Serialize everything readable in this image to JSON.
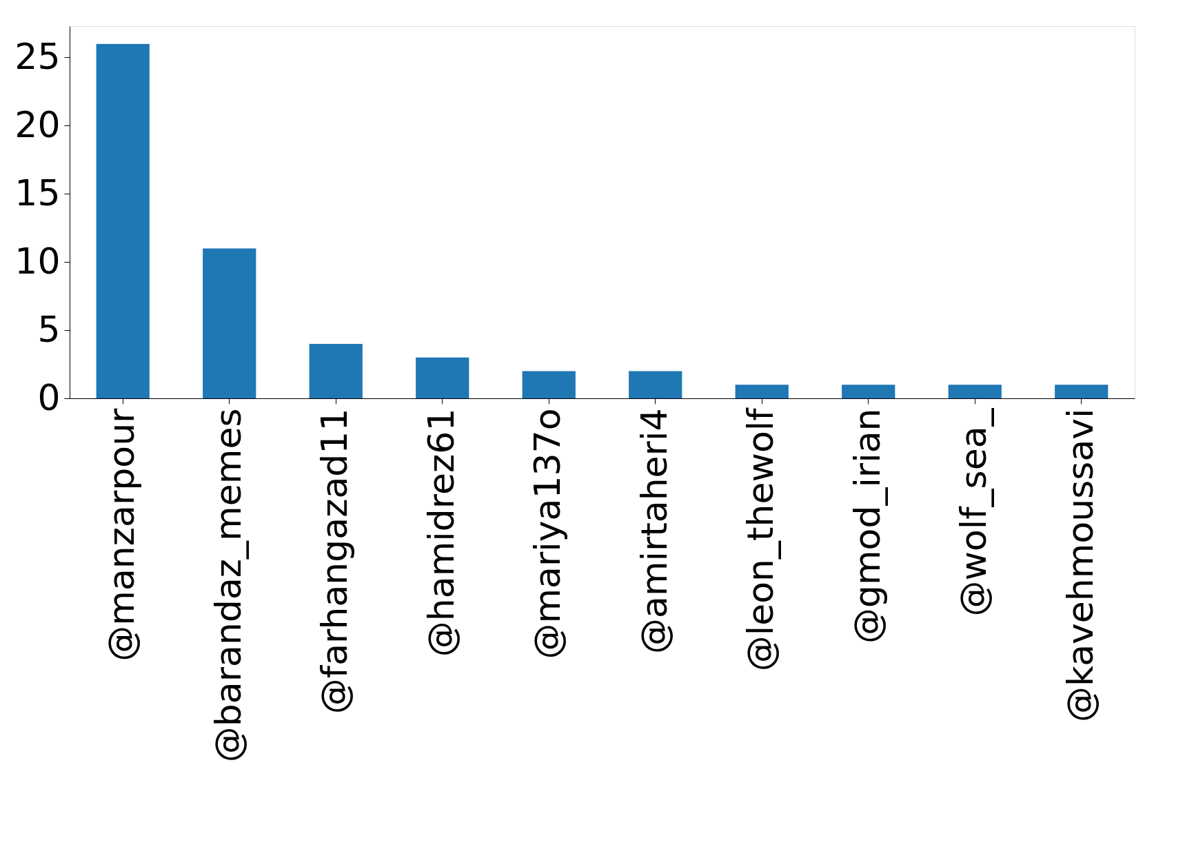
{
  "chart_data": {
    "type": "bar",
    "categories": [
      "@manzarpour",
      "@barandaz_memes",
      "@farhangazad11",
      "@hamidrez61",
      "@mariya137o",
      "@amirtaheri4",
      "@leon_thewolf",
      "@gmod_irian",
      "@wolf_sea_",
      "@kavehmoussavi"
    ],
    "values": [
      26,
      11,
      4,
      3,
      2,
      2,
      1,
      1,
      1,
      1
    ],
    "color": "#1f77b4",
    "ylim": [
      0,
      27.3
    ],
    "yticks": [
      0,
      5,
      10,
      15,
      20,
      25
    ],
    "grid": false
  }
}
